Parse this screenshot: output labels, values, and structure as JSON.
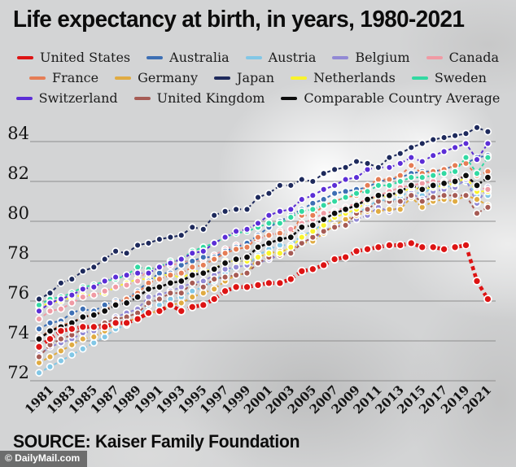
{
  "title": "Life expectancy at birth, in years, 1980-2021",
  "source": "SOURCE: Kaiser Family Foundation",
  "watermark": "© DailyMail.com",
  "legend_rows": [
    [
      "United States",
      "Australia",
      "Austria",
      "Belgium",
      "Canada"
    ],
    [
      "France",
      "Germany",
      "Japan",
      "Netherlands",
      "Sweden"
    ],
    [
      "Switzerland",
      "United Kingdom",
      "Comparable Country Average"
    ]
  ],
  "chart_data": {
    "type": "line",
    "title": "Life expectancy at birth, in years, 1980-2021",
    "xlabel": "",
    "ylabel": "",
    "grid": "horizontal",
    "legend_position": "top",
    "ylim": [
      71.8,
      85
    ],
    "yticks": [
      72,
      74,
      76,
      78,
      80,
      82,
      84
    ],
    "x_tick_labels": [
      "1981",
      "1983",
      "1985",
      "1987",
      "1989",
      "1991",
      "1993",
      "1995",
      "1997",
      "1999",
      "2001",
      "2003",
      "2005",
      "2007",
      "2009",
      "2011",
      "2013",
      "2015",
      "2017",
      "2019",
      "2021"
    ],
    "x": [
      1980,
      1981,
      1982,
      1983,
      1984,
      1985,
      1986,
      1987,
      1988,
      1989,
      1990,
      1991,
      1992,
      1993,
      1994,
      1995,
      1996,
      1997,
      1998,
      1999,
      2000,
      2001,
      2002,
      2003,
      2004,
      2005,
      2006,
      2007,
      2008,
      2009,
      2010,
      2011,
      2012,
      2013,
      2014,
      2015,
      2016,
      2017,
      2018,
      2019,
      2020,
      2021
    ],
    "draw_order": [
      "Austria",
      "Belgium",
      "Germany",
      "United Kingdom",
      "Netherlands",
      "Canada",
      "Australia",
      "France",
      "Sweden",
      "Switzerland",
      "Japan",
      "Comparable Country Average",
      "United States"
    ],
    "series": [
      {
        "name": "United States",
        "color": "#dd1414",
        "emphasis": true,
        "values": [
          73.7,
          74.1,
          74.5,
          74.6,
          74.7,
          74.7,
          74.7,
          74.9,
          74.9,
          75.1,
          75.4,
          75.5,
          75.8,
          75.5,
          75.7,
          75.8,
          76.1,
          76.5,
          76.7,
          76.7,
          76.8,
          76.9,
          76.9,
          77.1,
          77.5,
          77.6,
          77.8,
          78.1,
          78.2,
          78.5,
          78.6,
          78.7,
          78.8,
          78.8,
          78.9,
          78.7,
          78.7,
          78.6,
          78.7,
          78.8,
          77.0,
          76.1
        ]
      },
      {
        "name": "Australia",
        "color": "#3d6fb4",
        "values": [
          74.6,
          74.9,
          75.0,
          75.4,
          75.6,
          75.5,
          75.8,
          76.0,
          76.1,
          76.5,
          77.0,
          77.4,
          77.4,
          77.8,
          78.0,
          78.2,
          78.2,
          78.5,
          78.7,
          78.9,
          79.3,
          79.7,
          80.0,
          80.3,
          80.6,
          80.9,
          81.1,
          81.4,
          81.5,
          81.6,
          81.7,
          82.0,
          82.1,
          82.2,
          82.4,
          82.5,
          82.5,
          82.6,
          82.8,
          82.9,
          83.2,
          83.3
        ]
      },
      {
        "name": "Austria",
        "color": "#82c7e6",
        "values": [
          72.4,
          72.7,
          73.0,
          73.3,
          73.6,
          73.9,
          74.2,
          74.6,
          74.8,
          75.2,
          75.8,
          75.8,
          76.1,
          76.2,
          76.5,
          76.7,
          77.0,
          77.4,
          77.7,
          77.8,
          78.3,
          78.6,
          78.8,
          78.8,
          79.3,
          79.5,
          79.9,
          80.2,
          80.5,
          80.4,
          80.7,
          81.1,
          81.0,
          81.2,
          81.6,
          81.3,
          81.8,
          81.7,
          81.8,
          82.0,
          81.3,
          81.3
        ]
      },
      {
        "name": "Belgium",
        "color": "#9289d5",
        "values": [
          73.3,
          73.7,
          73.9,
          74.1,
          74.4,
          74.5,
          74.8,
          75.2,
          75.4,
          75.6,
          76.2,
          76.3,
          76.5,
          76.7,
          76.9,
          77.0,
          77.3,
          77.6,
          77.7,
          77.8,
          77.9,
          78.1,
          78.3,
          78.5,
          79.0,
          79.1,
          79.5,
          79.8,
          79.8,
          80.1,
          80.3,
          80.7,
          80.5,
          80.7,
          81.4,
          81.1,
          81.5,
          81.6,
          81.7,
          82.1,
          80.9,
          81.7
        ]
      },
      {
        "name": "Canada",
        "color": "#f09aa4",
        "values": [
          75.1,
          75.5,
          75.6,
          75.9,
          76.2,
          76.3,
          76.5,
          76.7,
          76.8,
          77.0,
          77.6,
          77.7,
          77.8,
          77.9,
          78.0,
          78.1,
          78.3,
          78.6,
          78.8,
          78.9,
          79.1,
          79.3,
          79.5,
          79.6,
          79.9,
          80.1,
          80.4,
          80.5,
          80.7,
          80.9,
          81.1,
          81.3,
          81.5,
          81.7,
          81.8,
          81.9,
          82.0,
          82.0,
          82.1,
          82.3,
          81.7,
          81.6
        ]
      },
      {
        "name": "France",
        "color": "#e57d55",
        "values": [
          74.2,
          74.5,
          74.8,
          74.9,
          75.2,
          75.3,
          75.5,
          75.9,
          76.1,
          76.4,
          76.9,
          77.1,
          77.3,
          77.4,
          77.7,
          77.8,
          78.1,
          78.4,
          78.6,
          78.7,
          79.2,
          79.3,
          79.4,
          79.3,
          80.3,
          80.3,
          80.8,
          81.0,
          81.2,
          81.3,
          81.8,
          82.1,
          82.1,
          82.3,
          82.8,
          82.4,
          82.5,
          82.6,
          82.8,
          82.9,
          82.3,
          82.5
        ]
      },
      {
        "name": "Germany",
        "color": "#e0ab42",
        "values": [
          72.9,
          73.2,
          73.5,
          73.8,
          74.1,
          74.2,
          74.5,
          74.8,
          74.9,
          75.2,
          75.4,
          75.5,
          75.8,
          75.9,
          76.2,
          76.4,
          76.6,
          77.0,
          77.3,
          77.4,
          78.2,
          78.4,
          78.5,
          78.6,
          78.9,
          79.0,
          79.4,
          79.8,
          80.1,
          80.3,
          80.5,
          80.5,
          80.6,
          80.6,
          81.2,
          80.7,
          81.0,
          81.1,
          81.0,
          81.3,
          81.1,
          80.8
        ]
      },
      {
        "name": "Japan",
        "color": "#1e2a5c",
        "values": [
          76.1,
          76.4,
          76.9,
          77.1,
          77.5,
          77.7,
          78.1,
          78.5,
          78.4,
          78.8,
          78.9,
          79.1,
          79.2,
          79.3,
          79.7,
          79.6,
          80.3,
          80.5,
          80.6,
          80.6,
          81.2,
          81.4,
          81.8,
          81.8,
          82.1,
          82.0,
          82.4,
          82.6,
          82.7,
          83.0,
          82.9,
          82.7,
          83.2,
          83.4,
          83.7,
          83.9,
          84.1,
          84.2,
          84.3,
          84.4,
          84.7,
          84.5
        ]
      },
      {
        "name": "Netherlands",
        "color": "#f9f32b",
        "values": [
          75.7,
          75.9,
          76.0,
          76.2,
          76.3,
          76.3,
          76.4,
          76.7,
          76.9,
          77.1,
          77.1,
          77.2,
          77.4,
          77.1,
          77.5,
          77.5,
          77.6,
          78.0,
          78.0,
          78.0,
          78.2,
          78.4,
          78.4,
          78.7,
          79.2,
          79.5,
          79.8,
          80.2,
          80.4,
          80.6,
          81.0,
          81.3,
          81.2,
          81.4,
          81.7,
          81.6,
          81.7,
          81.8,
          81.9,
          82.2,
          81.5,
          81.5
        ]
      },
      {
        "name": "Sweden",
        "color": "#32d9a2",
        "values": [
          75.8,
          76.1,
          76.2,
          76.4,
          76.7,
          76.8,
          77.0,
          77.1,
          77.3,
          77.7,
          77.6,
          77.7,
          78.0,
          78.1,
          78.5,
          78.7,
          78.9,
          79.2,
          79.4,
          79.5,
          79.7,
          79.9,
          79.9,
          80.2,
          80.5,
          80.6,
          80.8,
          81.0,
          81.2,
          81.4,
          81.5,
          81.8,
          81.8,
          82.0,
          82.2,
          82.2,
          82.3,
          82.4,
          82.5,
          83.2,
          82.4,
          83.2
        ]
      },
      {
        "name": "Switzerland",
        "color": "#5c2ed6",
        "values": [
          75.5,
          75.9,
          76.1,
          76.3,
          76.6,
          76.7,
          77.0,
          77.2,
          77.3,
          77.4,
          77.4,
          77.7,
          77.9,
          78.1,
          78.4,
          78.5,
          78.9,
          79.2,
          79.5,
          79.6,
          79.9,
          80.3,
          80.5,
          80.6,
          81.1,
          81.3,
          81.6,
          81.8,
          82.1,
          82.2,
          82.6,
          82.7,
          82.7,
          82.9,
          83.2,
          83.0,
          83.3,
          83.5,
          83.7,
          83.9,
          83.1,
          83.9
        ]
      },
      {
        "name": "United Kingdom",
        "color": "#a65c55",
        "values": [
          73.2,
          73.8,
          74.1,
          74.3,
          74.6,
          74.7,
          74.9,
          75.1,
          75.2,
          75.4,
          75.9,
          76.1,
          76.4,
          76.4,
          76.9,
          76.7,
          77.1,
          77.2,
          77.3,
          77.4,
          77.9,
          78.2,
          78.3,
          78.4,
          78.9,
          79.2,
          79.5,
          79.7,
          79.8,
          80.4,
          80.6,
          81.0,
          81.0,
          81.0,
          81.3,
          81.0,
          81.2,
          81.3,
          81.3,
          81.3,
          80.4,
          80.7
        ]
      },
      {
        "name": "Comparable Country Average",
        "color": "#0d0d0d",
        "values": [
          74.1,
          74.5,
          74.7,
          74.9,
          75.2,
          75.3,
          75.5,
          75.8,
          75.9,
          76.2,
          76.6,
          76.7,
          76.9,
          77.0,
          77.3,
          77.4,
          77.6,
          77.9,
          78.1,
          78.2,
          78.7,
          78.9,
          79.1,
          79.2,
          79.7,
          79.8,
          80.1,
          80.4,
          80.6,
          80.8,
          81.1,
          81.3,
          81.3,
          81.5,
          81.8,
          81.6,
          81.8,
          81.9,
          82.0,
          82.3,
          81.8,
          82.2
        ]
      }
    ]
  }
}
